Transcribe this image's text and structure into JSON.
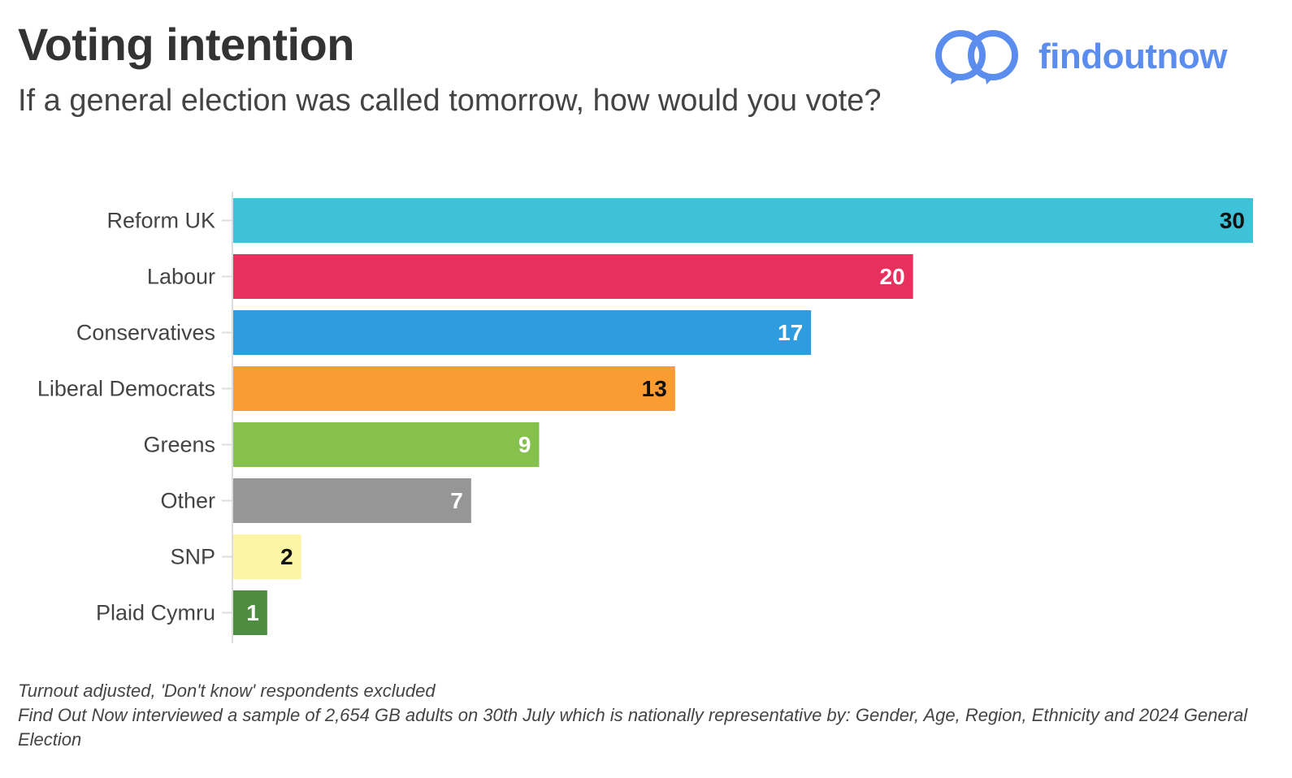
{
  "header": {
    "title": "Voting intention",
    "subtitle": "If a general election was called tomorrow, how would you vote?"
  },
  "logo": {
    "name": "findoutnow",
    "icon": "two-linked-rings-icon",
    "color": "#5b8def"
  },
  "chart_data": {
    "type": "bar",
    "orientation": "horizontal",
    "title": "Voting intention",
    "subtitle": "If a general election was called tomorrow, how would you vote?",
    "categories": [
      "Reform UK",
      "Labour",
      "Conservatives",
      "Liberal Democrats",
      "Greens",
      "Other",
      "SNP",
      "Plaid Cymru"
    ],
    "values": [
      30,
      20,
      17,
      13,
      9,
      7,
      2,
      1
    ],
    "colors": [
      "#3fc1d8",
      "#e8305e",
      "#2f9ce0",
      "#fb9c32",
      "#86c04d",
      "#969696",
      "#fdf5a6",
      "#4e8c42"
    ],
    "label_colors": [
      "#111111",
      "#ffffff",
      "#ffffff",
      "#111111",
      "#ffffff",
      "#ffffff",
      "#111111",
      "#ffffff"
    ],
    "xlim": [
      0,
      30
    ],
    "xlabel": "",
    "ylabel": "",
    "grid": false,
    "legend": "none",
    "data_labels": true
  },
  "footer": {
    "note1": "Turnout adjusted, 'Don't know' respondents excluded",
    "note2": "Find Out Now interviewed a sample of 2,654 GB adults on 30th July which is nationally representative by: Gender, Age, Region, Ethnicity and 2024 General Election"
  }
}
